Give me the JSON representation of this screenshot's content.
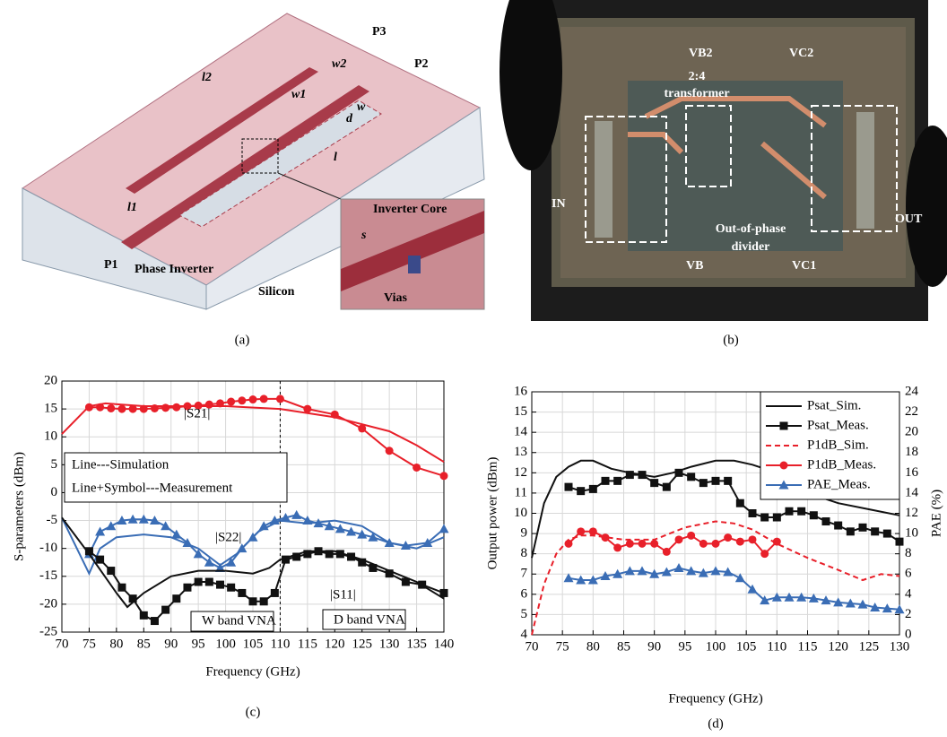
{
  "figure_a": {
    "caption": "(a)",
    "labels": [
      "P3",
      "P2",
      "P1",
      "w2",
      "w1",
      "w",
      "l2",
      "l1",
      "l",
      "d",
      "s",
      "Phase Inverter",
      "Silicon",
      "Inverter Core",
      "Vias"
    ]
  },
  "figure_b": {
    "caption": "(b)",
    "labels": [
      "VB2",
      "VC2",
      "2:4",
      "transformer",
      "IN",
      "OUT",
      "Out-of-phase",
      "divider",
      "VB",
      "VC1"
    ]
  },
  "chart_data": [
    {
      "type": "line",
      "caption": "(c)",
      "x_label": "Frequency (GHz)",
      "y_label": "S-parameters (dBm)",
      "xlim": [
        70,
        140
      ],
      "xticks": [
        70,
        75,
        80,
        85,
        90,
        95,
        100,
        105,
        110,
        115,
        120,
        125,
        130,
        135,
        140
      ],
      "ylim": [
        -25,
        20
      ],
      "yticks": [
        -25,
        -20,
        -15,
        -10,
        -5,
        0,
        5,
        10,
        15,
        20
      ],
      "grid": true,
      "vline": 110,
      "annotations": [
        "|S21|",
        "Line---Simulation",
        "Line+Symbol---Measurement",
        "|S22|",
        "|S11|",
        "W band VNA",
        "D band VNA"
      ],
      "series": [
        {
          "color": "#e8202a",
          "marker": "none",
          "x": [
            70,
            75,
            78,
            85,
            100,
            110,
            120,
            130,
            135,
            140
          ],
          "values": [
            10.5,
            15.5,
            16,
            15.5,
            15.5,
            15,
            13.5,
            11,
            8.5,
            5.5
          ]
        },
        {
          "color": "#e8202a",
          "marker": "circle",
          "x": [
            75,
            77,
            79,
            81,
            83,
            85,
            87,
            89,
            91,
            93,
            95,
            97,
            99,
            101,
            103,
            105,
            107,
            110,
            115,
            120,
            125,
            130,
            135,
            140
          ],
          "values": [
            15.3,
            15.3,
            15.1,
            15,
            15,
            15,
            15.1,
            15.2,
            15.3,
            15.5,
            15.6,
            15.8,
            16,
            16.3,
            16.5,
            16.7,
            16.8,
            16.8,
            15,
            14,
            11.5,
            7.5,
            4.5,
            3
          ]
        },
        {
          "color": "#3a6db5",
          "marker": "none",
          "x": [
            70,
            75,
            77,
            80,
            85,
            90,
            95,
            99,
            102,
            106,
            110,
            115,
            120,
            125,
            130,
            135,
            140
          ],
          "values": [
            -4.5,
            -14.5,
            -10,
            -8,
            -7.5,
            -8,
            -10,
            -13,
            -11,
            -7,
            -5,
            -5.5,
            -5,
            -6,
            -9,
            -10,
            -8
          ]
        },
        {
          "color": "#3a6db5",
          "marker": "triangle",
          "x": [
            75,
            77,
            79,
            81,
            83,
            85,
            87,
            89,
            91,
            93,
            95,
            97,
            99,
            101,
            103,
            105,
            107,
            109,
            111,
            113,
            115,
            117,
            119,
            121,
            123,
            125,
            127,
            130,
            133,
            137,
            140
          ],
          "values": [
            -11,
            -7,
            -6,
            -5,
            -4.8,
            -4.8,
            -5,
            -6,
            -7.5,
            -9,
            -11,
            -12.5,
            -13.5,
            -12.5,
            -10,
            -8,
            -6,
            -5,
            -4.5,
            -4,
            -5,
            -5.5,
            -6,
            -6.5,
            -7,
            -7.5,
            -8,
            -9,
            -9.5,
            -9,
            -6.5
          ]
        },
        {
          "color": "#111111",
          "marker": "none",
          "x": [
            70,
            75,
            80,
            82,
            85,
            90,
            95,
            100,
            105,
            108,
            110,
            115,
            120,
            125,
            130,
            135,
            140
          ],
          "values": [
            -4.5,
            -11,
            -18,
            -20.5,
            -18,
            -15,
            -14,
            -14,
            -14.5,
            -13.5,
            -12,
            -10.5,
            -10.5,
            -12,
            -14,
            -16,
            -19
          ]
        },
        {
          "color": "#111111",
          "marker": "square",
          "x": [
            75,
            77,
            79,
            81,
            83,
            85,
            87,
            89,
            91,
            93,
            95,
            97,
            99,
            101,
            103,
            105,
            107,
            109,
            111,
            113,
            115,
            117,
            119,
            121,
            123,
            125,
            127,
            130,
            133,
            136,
            140
          ],
          "values": [
            -10.5,
            -12,
            -14,
            -17,
            -19,
            -22,
            -23,
            -21,
            -19,
            -17,
            -16,
            -16,
            -16.5,
            -17,
            -18,
            -19.5,
            -19.5,
            -18,
            -12,
            -11.5,
            -11,
            -10.5,
            -11,
            -11,
            -11.5,
            -12.5,
            -13.5,
            -14.5,
            -16,
            -16.5,
            -18
          ]
        }
      ]
    },
    {
      "type": "line",
      "caption": "(d)",
      "x_label": "Frequency (GHz)",
      "y_label": "Output power (dBm)",
      "y2_label": "PAE (%)",
      "xlim": [
        70,
        130
      ],
      "xticks": [
        70,
        75,
        80,
        85,
        90,
        95,
        100,
        105,
        110,
        115,
        120,
        125,
        130
      ],
      "ylim": [
        4,
        16
      ],
      "yticks": [
        4,
        5,
        6,
        7,
        8,
        9,
        10,
        11,
        12,
        13,
        14,
        15,
        16
      ],
      "y2lim": [
        0,
        24
      ],
      "y2ticks": [
        0,
        2,
        4,
        6,
        8,
        10,
        12,
        14,
        16,
        18,
        20,
        22,
        24
      ],
      "grid": true,
      "legend": "upper right",
      "series": [
        {
          "name": "Psat_Sim.",
          "color": "#111111",
          "marker": "none",
          "x": [
            70,
            72,
            74,
            76,
            78,
            80,
            83,
            86,
            90,
            93,
            96,
            100,
            103,
            106,
            110,
            115,
            120,
            125,
            130
          ],
          "values": [
            7.8,
            10.5,
            11.8,
            12.3,
            12.6,
            12.6,
            12.2,
            12,
            11.8,
            12,
            12.3,
            12.6,
            12.6,
            12.4,
            12,
            11,
            10.5,
            10.2,
            9.9
          ]
        },
        {
          "name": "Psat_Meas.",
          "color": "#111111",
          "marker": "square",
          "x": [
            76,
            78,
            80,
            82,
            84,
            86,
            88,
            90,
            92,
            94,
            96,
            98,
            100,
            102,
            104,
            106,
            108,
            110,
            112,
            114,
            116,
            118,
            120,
            122,
            124,
            126,
            128,
            130
          ],
          "values": [
            11.3,
            11.1,
            11.2,
            11.6,
            11.6,
            11.9,
            11.9,
            11.5,
            11.3,
            12,
            11.8,
            11.5,
            11.6,
            11.6,
            10.5,
            10,
            9.8,
            9.8,
            10.1,
            10.1,
            9.9,
            9.6,
            9.4,
            9.1,
            9.3,
            9.1,
            9,
            8.6
          ]
        },
        {
          "name": "P1dB_Sim.",
          "color": "#e8202a",
          "marker": "none",
          "dash": true,
          "x": [
            70,
            72,
            74,
            76,
            78,
            80,
            85,
            90,
            95,
            100,
            103,
            106,
            110,
            115,
            120,
            124,
            127,
            130
          ],
          "values": [
            4,
            6.5,
            8,
            8.7,
            8.9,
            8.9,
            8.7,
            8.7,
            9.3,
            9.6,
            9.5,
            9.2,
            8.5,
            7.8,
            7.2,
            6.7,
            7,
            6.9
          ]
        },
        {
          "name": "P1dB_Meas.",
          "color": "#e8202a",
          "marker": "circle",
          "x": [
            76,
            78,
            80,
            82,
            84,
            86,
            88,
            90,
            92,
            94,
            96,
            98,
            100,
            102,
            104,
            106,
            108,
            110
          ],
          "values": [
            8.5,
            9.1,
            9.1,
            8.8,
            8.3,
            8.5,
            8.5,
            8.5,
            8.1,
            8.7,
            8.9,
            8.5,
            8.5,
            8.8,
            8.6,
            8.7,
            8,
            8.6
          ]
        },
        {
          "name": "PAE_Meas.",
          "color": "#3a6db5",
          "marker": "triangle",
          "axis": "y2",
          "x": [
            76,
            78,
            80,
            82,
            84,
            86,
            88,
            90,
            92,
            94,
            96,
            98,
            100,
            102,
            104,
            106,
            108,
            110,
            112,
            114,
            116,
            118,
            120,
            122,
            124,
            126,
            128,
            130
          ],
          "values": [
            5.6,
            5.4,
            5.4,
            5.8,
            6,
            6.3,
            6.3,
            6,
            6.2,
            6.6,
            6.3,
            6.1,
            6.3,
            6.2,
            5.6,
            4.5,
            3.4,
            3.7,
            3.7,
            3.7,
            3.6,
            3.4,
            3.2,
            3.1,
            3,
            2.7,
            2.6,
            2.5
          ]
        }
      ]
    }
  ]
}
